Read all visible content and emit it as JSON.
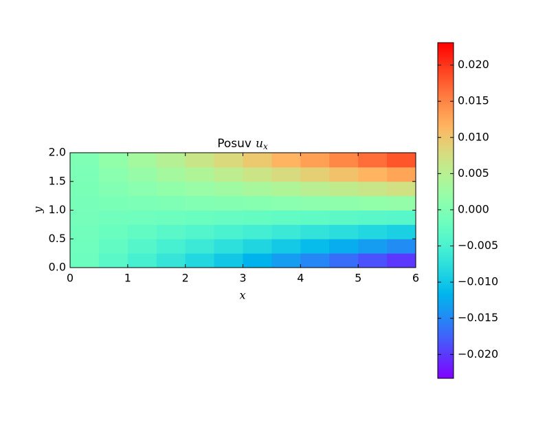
{
  "chart_data": {
    "type": "heatmap",
    "title": "Posuv",
    "title_math": "u",
    "title_math_sub": "x",
    "x_label": "x",
    "y_label": "y",
    "colormap": "rainbow",
    "xlim": [
      0,
      6
    ],
    "ylim": [
      0,
      2
    ],
    "xticks": [
      0,
      1,
      2,
      3,
      4,
      5,
      6
    ],
    "yticks": [
      {
        "value": 0,
        "label": "0.0"
      },
      {
        "value": 0.5,
        "label": "0.5"
      },
      {
        "value": 1,
        "label": "1.0"
      },
      {
        "value": 1.5,
        "label": "1.5"
      },
      {
        "value": 2,
        "label": "2.0"
      }
    ],
    "x": [
      0.25,
      0.75,
      1.25,
      1.75,
      2.25,
      2.75,
      3.25,
      3.75,
      4.25,
      4.75,
      5.25,
      5.75
    ],
    "y": [
      0.125,
      0.375,
      0.625,
      0.875,
      1.125,
      1.375,
      1.625,
      1.875
    ],
    "z": [
      [
        -0.0018,
        -0.0035,
        -0.0052,
        -0.0068,
        -0.0085,
        -0.0101,
        -0.0118,
        -0.0135,
        -0.0151,
        -0.0168,
        -0.0185,
        -0.0201
      ],
      [
        -0.0016,
        -0.0028,
        -0.004,
        -0.0052,
        -0.0063,
        -0.0075,
        -0.0087,
        -0.0099,
        -0.0111,
        -0.0123,
        -0.0135,
        -0.0147
      ],
      [
        -0.0014,
        -0.0021,
        -0.0028,
        -0.0035,
        -0.0042,
        -0.0049,
        -0.0056,
        -0.0063,
        -0.0071,
        -0.0078,
        -0.0085,
        -0.0092
      ],
      [
        -0.0011,
        -0.0014,
        -0.0016,
        -0.0018,
        -0.0021,
        -0.0023,
        -0.0025,
        -0.0028,
        -0.003,
        -0.0033,
        -0.0035,
        -0.0037
      ],
      [
        -0.0009,
        -0.0006,
        -0.0004,
        -0.0002,
        0.0001,
        0.0003,
        0.0005,
        0.0008,
        0.001,
        0.0013,
        0.0015,
        0.0017
      ],
      [
        -0.0006,
        0.0001,
        0.0008,
        0.0015,
        0.0022,
        0.0029,
        0.0036,
        0.0043,
        0.0051,
        0.0058,
        0.0065,
        0.0072
      ],
      [
        -0.0004,
        0.0008,
        0.002,
        0.0032,
        0.0043,
        0.0055,
        0.0067,
        0.0079,
        0.0091,
        0.0103,
        0.0115,
        0.0127
      ],
      [
        -0.0002,
        0.0015,
        0.0032,
        0.0048,
        0.0065,
        0.0081,
        0.0098,
        0.0115,
        0.0131,
        0.0148,
        0.0165,
        0.0181
      ]
    ],
    "clim": [
      -0.0233,
      0.0231
    ],
    "cticks": [
      {
        "value": -0.02,
        "label": "−0.020"
      },
      {
        "value": -0.015,
        "label": "−0.015"
      },
      {
        "value": -0.01,
        "label": "−0.010"
      },
      {
        "value": -0.005,
        "label": "−0.005"
      },
      {
        "value": 0,
        "label": "0.000"
      },
      {
        "value": 0.005,
        "label": "0.005"
      },
      {
        "value": 0.01,
        "label": "0.010"
      },
      {
        "value": 0.015,
        "label": "0.015"
      },
      {
        "value": 0.02,
        "label": "0.020"
      }
    ]
  }
}
